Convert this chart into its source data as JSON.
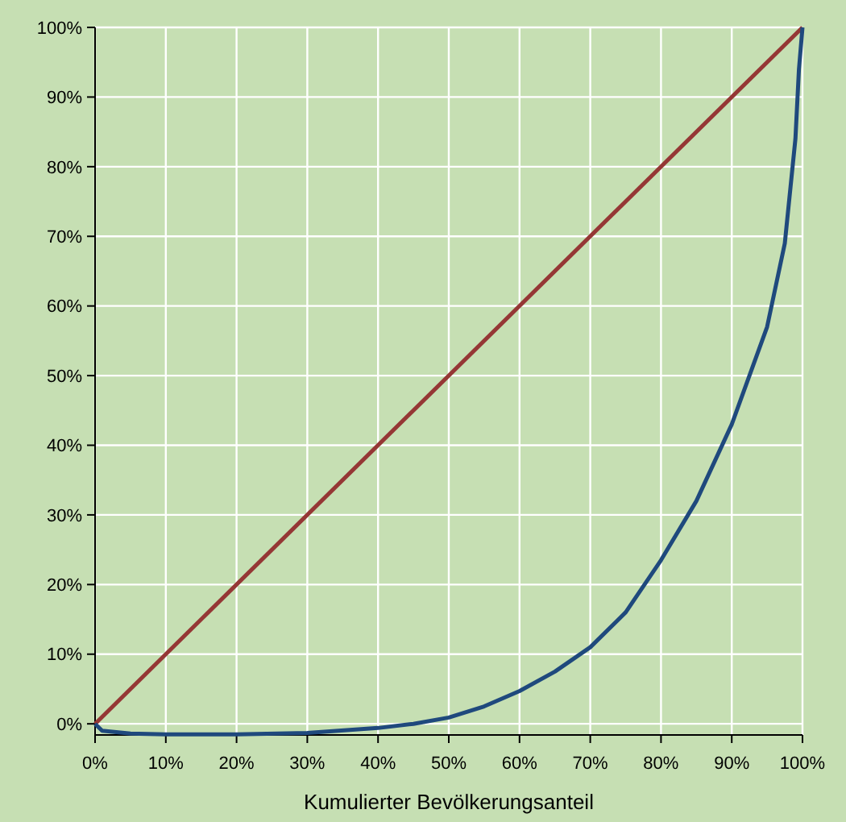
{
  "chart_data": {
    "type": "line",
    "xlabel": "Kumulierter Bevölkerungsanteil",
    "xlim": [
      0,
      100
    ],
    "ylim": [
      -1.6,
      100
    ],
    "xticks": [
      {
        "value": 0,
        "label": "0%"
      },
      {
        "value": 10,
        "label": "10%"
      },
      {
        "value": 20,
        "label": "20%"
      },
      {
        "value": 30,
        "label": "30%"
      },
      {
        "value": 40,
        "label": "40%"
      },
      {
        "value": 50,
        "label": "50%"
      },
      {
        "value": 60,
        "label": "60%"
      },
      {
        "value": 70,
        "label": "70%"
      },
      {
        "value": 80,
        "label": "80%"
      },
      {
        "value": 90,
        "label": "90%"
      },
      {
        "value": 100,
        "label": "100%"
      }
    ],
    "yticks": [
      {
        "value": 0,
        "label": "0%"
      },
      {
        "value": 10,
        "label": "10%"
      },
      {
        "value": 20,
        "label": "20%"
      },
      {
        "value": 30,
        "label": "30%"
      },
      {
        "value": 40,
        "label": "40%"
      },
      {
        "value": 50,
        "label": "50%"
      },
      {
        "value": 60,
        "label": "60%"
      },
      {
        "value": 70,
        "label": "70%"
      },
      {
        "value": 80,
        "label": "80%"
      },
      {
        "value": 90,
        "label": "90%"
      },
      {
        "value": 100,
        "label": "100%"
      }
    ],
    "grid": true,
    "series": [
      {
        "color": "#953735",
        "x": [
          0,
          100
        ],
        "values": [
          0,
          100
        ]
      },
      {
        "color": "#1f497d",
        "x": [
          0,
          1,
          5,
          10,
          20,
          30,
          40,
          45,
          50,
          55,
          60,
          65,
          70,
          75,
          80,
          85,
          90,
          95,
          97.5,
          99,
          99.5,
          100
        ],
        "values": [
          0,
          -1,
          -1.4,
          -1.5,
          -1.5,
          -1.3,
          -0.6,
          0,
          0.9,
          2.5,
          4.7,
          7.5,
          11,
          16,
          23.5,
          32,
          43,
          57,
          69,
          84,
          94,
          100
        ]
      }
    ]
  }
}
